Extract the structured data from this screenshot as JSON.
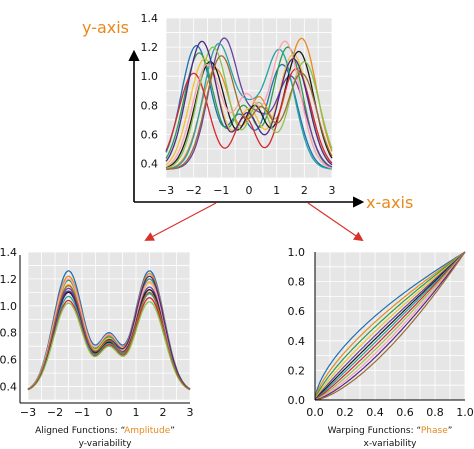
{
  "top_panel": {
    "y_axis_title": "y-axis",
    "x_axis_title": "x-axis"
  },
  "left_panel": {
    "caption_prefix": "Aligned Functions: “",
    "caption_accent": "Amplitude",
    "caption_suffix": "”",
    "subcaption": "y-variability"
  },
  "right_panel": {
    "caption_prefix": "Warping Functions: “",
    "caption_accent": "Phase",
    "caption_suffix": "”",
    "subcaption": "x-variability"
  },
  "colors": {
    "accent": "#e8891c",
    "arrow": "#d8332b",
    "grid_bg": "#e6e6e6",
    "grid_line": "#ffffff",
    "palette": [
      "#1f6fb2",
      "#e8891c",
      "#2a9d4a",
      "#f2c32e",
      "#6b3fa0",
      "#1a1a1a",
      "#27a3a3",
      "#d6272e",
      "#8bc34a",
      "#ff9fb2",
      "#4b2a8a",
      "#9e6b2e"
    ]
  },
  "chart_data": [
    {
      "type": "line",
      "name": "top",
      "xlim": [
        -3,
        3
      ],
      "ylim": [
        0.3,
        1.4
      ],
      "xticks": [
        -3,
        -2,
        -1,
        0,
        1,
        2,
        3
      ],
      "yticks": [
        0.4,
        0.6,
        0.8,
        1.0,
        1.2,
        1.4
      ],
      "ytick_labels": [
        "0.4",
        "0.6",
        "0.8",
        "1.0",
        "1.2",
        "1.4"
      ],
      "grid": true,
      "series": [
        {
          "peak1_x": -1.9,
          "peak1": 1.21,
          "peak2_x": 1.2,
          "peak2": 1.08,
          "dip": 0.74
        },
        {
          "peak1_x": -1.2,
          "peak1": 1.05,
          "peak2_x": 1.9,
          "peak2": 1.26,
          "dip": 0.86
        },
        {
          "peak1_x": -1.8,
          "peak1": 1.16,
          "peak2_x": 1.4,
          "peak2": 1.2,
          "dip": 0.8
        },
        {
          "peak1_x": -1.6,
          "peak1": 1.12,
          "peak2_x": 1.6,
          "peak2": 1.15,
          "dip": 0.78
        },
        {
          "peak1_x": -0.9,
          "peak1": 1.26,
          "peak2_x": 1.5,
          "peak2": 1.0,
          "dip": 0.76
        },
        {
          "peak1_x": -1.4,
          "peak1": 1.1,
          "peak2_x": 1.8,
          "peak2": 1.17,
          "dip": 0.8
        },
        {
          "peak1_x": -1.1,
          "peak1": 1.22,
          "peak2_x": 1.1,
          "peak2": 1.18,
          "dip": 0.84
        },
        {
          "peak1_x": -2.0,
          "peak1": 1.02,
          "peak2_x": 1.7,
          "peak2": 1.05,
          "dip": 0.72
        },
        {
          "peak1_x": -1.3,
          "peak1": 1.2,
          "peak2_x": 2.0,
          "peak2": 1.1,
          "dip": 0.82
        },
        {
          "peak1_x": -1.5,
          "peak1": 1.08,
          "peak2_x": 1.3,
          "peak2": 1.24,
          "dip": 0.88
        },
        {
          "peak1_x": -1.7,
          "peak1": 1.24,
          "peak2_x": 1.6,
          "peak2": 1.12,
          "dip": 0.75
        },
        {
          "peak1_x": -1.0,
          "peak1": 1.14,
          "peak2_x": 1.9,
          "peak2": 1.02,
          "dip": 0.79
        }
      ]
    },
    {
      "type": "line",
      "name": "aligned",
      "xlim": [
        -3,
        3
      ],
      "ylim": [
        0.3,
        1.4
      ],
      "xticks": [
        -3,
        -2,
        -1,
        0,
        1,
        2,
        3
      ],
      "yticks": [
        0.4,
        0.6,
        0.8,
        1.0,
        1.2,
        1.4
      ],
      "ytick_labels": [
        "0.4",
        "0.6",
        "0.8",
        "1.0",
        "1.2",
        "1.4"
      ],
      "grid": true,
      "series": [
        {
          "peak1_x": -1.5,
          "peak1": 1.26,
          "peak2_x": 1.5,
          "peak2": 1.26,
          "dip": 0.8
        },
        {
          "peak1_x": -1.5,
          "peak1": 1.22,
          "peak2_x": 1.5,
          "peak2": 1.24,
          "dip": 0.78
        },
        {
          "peak1_x": -1.5,
          "peak1": 1.19,
          "peak2_x": 1.5,
          "peak2": 1.2,
          "dip": 0.77
        },
        {
          "peak1_x": -1.5,
          "peak1": 1.16,
          "peak2_x": 1.5,
          "peak2": 1.17,
          "dip": 0.76
        },
        {
          "peak1_x": -1.5,
          "peak1": 1.13,
          "peak2_x": 1.5,
          "peak2": 1.14,
          "dip": 0.74
        },
        {
          "peak1_x": -1.5,
          "peak1": 1.1,
          "peak2_x": 1.5,
          "peak2": 1.12,
          "dip": 0.73
        },
        {
          "peak1_x": -1.5,
          "peak1": 1.07,
          "peak2_x": 1.5,
          "peak2": 1.09,
          "dip": 0.72
        },
        {
          "peak1_x": -1.5,
          "peak1": 1.04,
          "peak2_x": 1.5,
          "peak2": 1.06,
          "dip": 0.71
        },
        {
          "peak1_x": -1.5,
          "peak1": 1.02,
          "peak2_x": 1.5,
          "peak2": 1.03,
          "dip": 0.7
        },
        {
          "peak1_x": -1.5,
          "peak1": 1.2,
          "peak2_x": 1.5,
          "peak2": 1.18,
          "dip": 0.79
        },
        {
          "peak1_x": -1.5,
          "peak1": 1.11,
          "peak2_x": 1.5,
          "peak2": 1.22,
          "dip": 0.75
        },
        {
          "peak1_x": -1.5,
          "peak1": 1.15,
          "peak2_x": 1.5,
          "peak2": 1.1,
          "dip": 0.74
        }
      ]
    },
    {
      "type": "line",
      "name": "warping",
      "xlim": [
        0,
        1
      ],
      "ylim": [
        0,
        1
      ],
      "xticks": [
        0,
        0.2,
        0.4,
        0.6,
        0.8,
        1
      ],
      "xtick_labels": [
        "0.0",
        "0.2",
        "0.4",
        "0.6",
        "0.8",
        "1.0"
      ],
      "yticks": [
        0,
        0.2,
        0.4,
        0.6,
        0.8,
        1
      ],
      "ytick_labels": [
        "0.0",
        "0.2",
        "0.4",
        "0.6",
        "0.8",
        "1.0"
      ],
      "grid": true,
      "series": [
        {
          "gamma": 0.62
        },
        {
          "gamma": 0.7
        },
        {
          "gamma": 0.77
        },
        {
          "gamma": 0.84
        },
        {
          "gamma": 0.91
        },
        {
          "gamma": 0.97
        },
        {
          "gamma": 1.03
        },
        {
          "gamma": 1.1
        },
        {
          "gamma": 1.18
        },
        {
          "gamma": 1.27
        },
        {
          "gamma": 1.36
        },
        {
          "gamma": 1.48
        }
      ]
    }
  ]
}
